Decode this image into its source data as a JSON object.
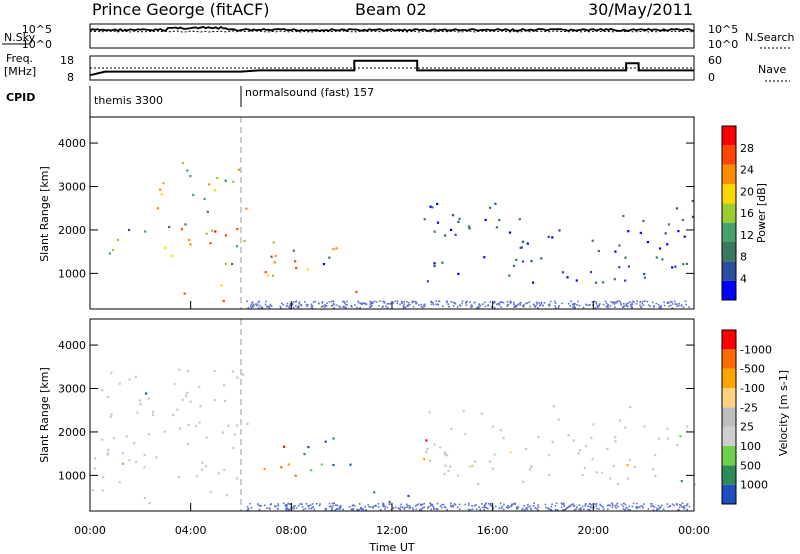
{
  "header": {
    "station": "Prince George (fitACF)",
    "beam": "Beam 02",
    "date": "30/May/2011"
  },
  "top_panels": {
    "nsky_label": "N.Sky",
    "nsky_ticks": [
      "10^5",
      "10^0"
    ],
    "nsearch_label": "N.Search",
    "nsearch_ticks": [
      "10^5",
      "10^0"
    ],
    "freq_label_1": "Freq.",
    "freq_label_2": "[MHz]",
    "freq_ticks": [
      "18",
      "8"
    ],
    "nave_label": "Nave",
    "nave_ticks": [
      "60",
      "0"
    ],
    "cpid_label": "CPID",
    "cpid_segments": [
      {
        "label": "themis 3300",
        "start_hour": 0.0
      },
      {
        "label": "normalsound (fast) 157",
        "start_hour": 6.0
      }
    ]
  },
  "colors": {
    "power": [
      "#0000ff",
      "#2b4ea0",
      "#3a7a5c",
      "#47a16b",
      "#9acd32",
      "#ffd700",
      "#ff8c00",
      "#ff4500",
      "#ff0000"
    ],
    "velocity": [
      "#ff0000",
      "#ff6a00",
      "#ffa500",
      "#ffd27f",
      "#bdbdbd",
      "#cfcfcf",
      "#6fd14a",
      "#2e8b57",
      "#1f4fbf"
    ],
    "velocity_mid": "#c8c8c4",
    "ground": "#5a6fd0"
  },
  "chart_data": [
    {
      "type": "heatmap",
      "name": "Power",
      "xlabel": "",
      "ylabel": "Slant Range [km]",
      "xlim": [
        0,
        24
      ],
      "ylim": [
        180,
        4600
      ],
      "yticks": [
        "1000",
        "2000",
        "3000",
        "4000"
      ],
      "colorbar": {
        "label": "Power [dB]",
        "ticks": [
          "4",
          "8",
          "12",
          "16",
          "20",
          "24",
          "28"
        ],
        "range": [
          0,
          30
        ]
      },
      "echo_regions": [
        {
          "hours": [
            0.6,
            2.0
          ],
          "range_km": [
            1300,
            2100
          ],
          "dominant": "blue-green"
        },
        {
          "hours": [
            2.0,
            6.3
          ],
          "range_km": [
            1200,
            2300
          ],
          "dominant": "green-yellow-orange"
        },
        {
          "hours": [
            2.5,
            6.2
          ],
          "range_km": [
            2400,
            3600
          ],
          "dominant": "green-yellow"
        },
        {
          "hours": [
            3.7,
            5.3
          ],
          "range_km": [
            350,
            900
          ],
          "dominant": "yellow-orange"
        },
        {
          "hours": [
            6.6,
            10.4
          ],
          "range_km": [
            900,
            1900
          ],
          "dominant": "blue-green-orange"
        },
        {
          "hours": [
            10.4,
            11.2
          ],
          "range_km": [
            400,
            700
          ],
          "dominant": "orange"
        },
        {
          "hours": [
            13.2,
            24.0
          ],
          "range_km": [
            800,
            2700
          ],
          "dominant": "blue"
        }
      ]
    },
    {
      "type": "heatmap",
      "name": "Velocity",
      "xlabel": "Time UT",
      "ylabel": "Slant Range [km]",
      "xlim": [
        0,
        24
      ],
      "ylim": [
        180,
        4600
      ],
      "xticks": [
        "00:00",
        "04:00",
        "08:00",
        "12:00",
        "16:00",
        "20:00",
        "00:00"
      ],
      "yticks": [
        "1000",
        "2000",
        "3000",
        "4000"
      ],
      "colorbar": {
        "label": "Velocity [m s-1]",
        "ticks": [
          "1000",
          "500",
          "100",
          "25",
          "-25",
          "-100",
          "-500",
          "-1000"
        ],
        "range": [
          -1000,
          1000
        ]
      },
      "echo_regions": [
        {
          "hours": [
            0.0,
            6.3
          ],
          "range_km": [
            350,
            3600
          ],
          "dominant_velocity_m_s": 0
        },
        {
          "hours": [
            6.6,
            8.2
          ],
          "range_km": [
            1000,
            1750
          ],
          "dominant_velocity_m_s": -300
        },
        {
          "hours": [
            8.2,
            10.4
          ],
          "range_km": [
            1000,
            1900
          ],
          "dominant_velocity_m_s": 150
        },
        {
          "hours": [
            10.6,
            13.0
          ],
          "range_km": [
            400,
            700
          ],
          "dominant_velocity_m_s": 150
        },
        {
          "hours": [
            13.2,
            24.0
          ],
          "range_km": [
            800,
            2700
          ],
          "dominant_velocity_m_s": 0
        }
      ]
    },
    {
      "type": "line",
      "name": "Freq and Nave",
      "series": [
        {
          "name": "Freq.",
          "x": [
            0.0,
            0.6,
            6.0,
            6.7,
            10.5,
            10.5,
            13.0,
            13.0,
            21.3,
            21.3,
            21.8,
            21.8,
            24.0
          ],
          "values": [
            10.0,
            11.5,
            11.5,
            12.0,
            12.0,
            16.0,
            16.0,
            12.0,
            12.0,
            15.0,
            15.0,
            12.0,
            12.0
          ]
        }
      ]
    }
  ]
}
